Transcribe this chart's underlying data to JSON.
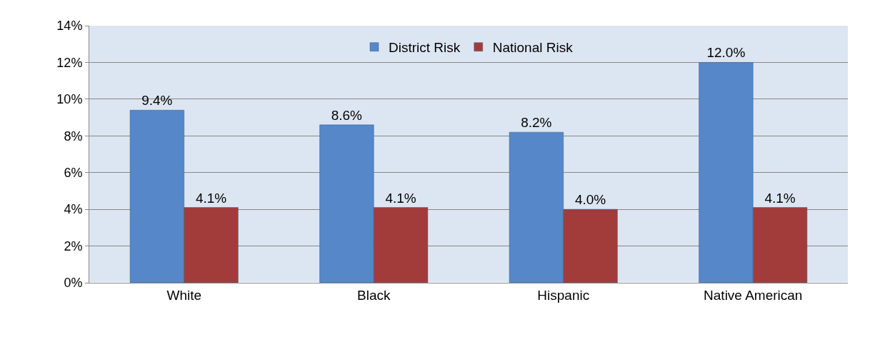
{
  "chart_data": {
    "type": "bar",
    "categories": [
      "White",
      "Black",
      "Hispanic",
      "Native American"
    ],
    "series": [
      {
        "name": "District Risk",
        "color": "#5587c9",
        "values": [
          9.4,
          8.6,
          8.2,
          12.0
        ],
        "value_labels": [
          "9.4%",
          "8.6%",
          "8.2%",
          "12.0%"
        ]
      },
      {
        "name": "National Risk",
        "color": "#a23c3a",
        "values": [
          4.1,
          4.1,
          4.0,
          4.1
        ],
        "value_labels": [
          "4.1%",
          "4.1%",
          "4.0%",
          "4.1%"
        ]
      }
    ],
    "ylim": [
      0,
      14
    ],
    "yticks": [
      {
        "value": 0,
        "label": "0%"
      },
      {
        "value": 2,
        "label": "2%"
      },
      {
        "value": 4,
        "label": "4%"
      },
      {
        "value": 6,
        "label": "6%"
      },
      {
        "value": 8,
        "label": "8%"
      },
      {
        "value": 10,
        "label": "10%"
      },
      {
        "value": 12,
        "label": "12%"
      },
      {
        "value": 14,
        "label": "14%"
      }
    ],
    "grid": "y",
    "legend": "top"
  }
}
